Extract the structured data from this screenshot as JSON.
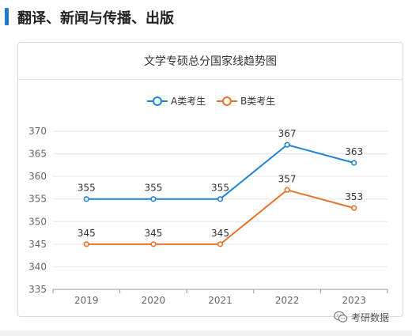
{
  "header": {
    "title": "翻译、新闻与传播、出版"
  },
  "chart_data": {
    "type": "line",
    "title": "文学专硕总分国家线趋势图",
    "categories": [
      "2019",
      "2020",
      "2021",
      "2022",
      "2023"
    ],
    "series": [
      {
        "name": "A类考生",
        "values": [
          355,
          355,
          355,
          367,
          363
        ],
        "color": "#1f83d6"
      },
      {
        "name": "B类考生",
        "values": [
          345,
          345,
          345,
          357,
          353
        ],
        "color": "#e8722b"
      }
    ],
    "yticks": [
      "335",
      "340",
      "345",
      "350",
      "355",
      "360",
      "365",
      "370"
    ],
    "ylim": [
      335,
      370
    ],
    "legend": "top-center",
    "grid": true,
    "xlabel": "",
    "ylabel": ""
  },
  "watermark": {
    "text": "考研数据",
    "icon": "wechat-icon"
  }
}
